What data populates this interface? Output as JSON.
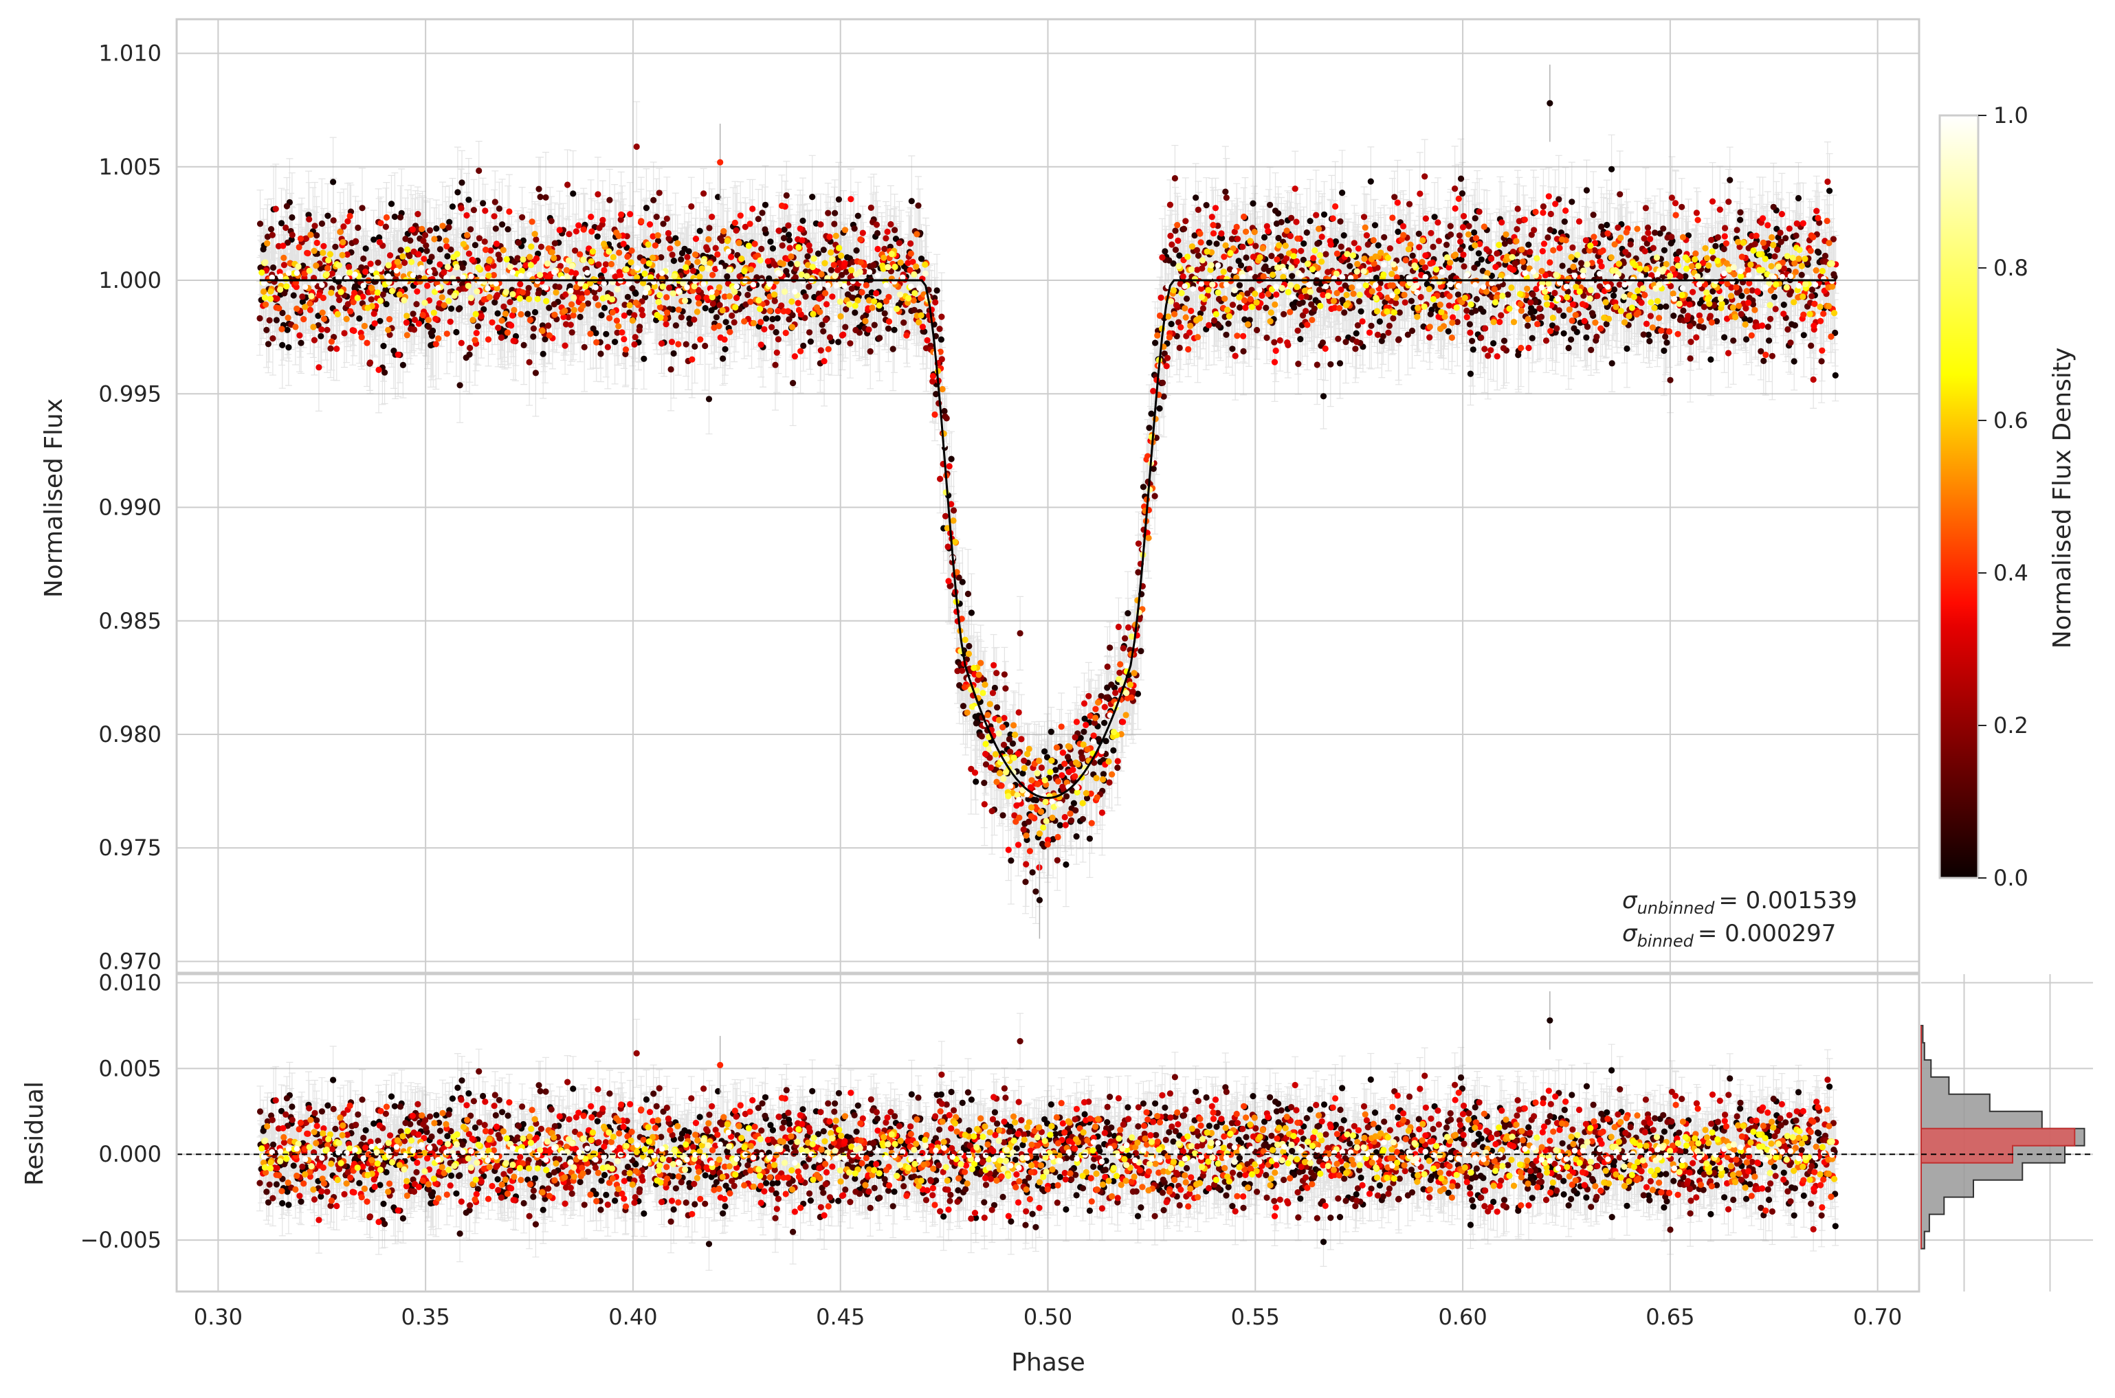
{
  "chart_data": [
    {
      "type": "scatter",
      "panel": "main",
      "xlabel": "Phase",
      "ylabel": "Normalised Flux",
      "xlim": [
        0.29,
        0.71
      ],
      "ylim": [
        0.9695,
        1.0115
      ],
      "xticks": [
        "0.30",
        "0.35",
        "0.40",
        "0.45",
        "0.50",
        "0.55",
        "0.60",
        "0.65",
        "0.70"
      ],
      "yticks": [
        "0.970",
        "0.975",
        "0.980",
        "0.985",
        "0.990",
        "0.995",
        "1.000",
        "1.005",
        "1.010"
      ],
      "grid": true,
      "data_range_x": [
        0.31,
        0.69
      ],
      "transit": {
        "center": 0.5,
        "baseline": 1.0,
        "t1": 0.47,
        "t2": 0.481,
        "t3": 0.519,
        "t4": 0.53,
        "ingress_knee_flux": 0.9825,
        "min_flux": 0.9772
      },
      "model_curve": {
        "x": [
          0.31,
          0.47,
          0.472,
          0.475,
          0.478,
          0.481,
          0.484,
          0.488,
          0.492,
          0.496,
          0.5,
          0.504,
          0.508,
          0.512,
          0.516,
          0.519,
          0.522,
          0.525,
          0.528,
          0.53,
          0.69
        ],
        "y": [
          1.0,
          1.0,
          0.9985,
          0.9945,
          0.989,
          0.9828,
          0.98,
          0.9786,
          0.9778,
          0.9774,
          0.9772,
          0.9774,
          0.9778,
          0.9786,
          0.98,
          0.9828,
          0.989,
          0.9945,
          0.9985,
          1.0,
          1.0
        ]
      },
      "scatter_sigma": 0.001539,
      "binned_sigma": 0.000297,
      "outlier_points": [
        {
          "x": 0.621,
          "y": 1.0078
        },
        {
          "x": 0.421,
          "y": 1.0052
        },
        {
          "x": 0.498,
          "y": 0.9727
        }
      ],
      "annotations": {
        "sigma_unbinned": {
          "symbol": "σ",
          "sub": "unbinned",
          "value": "= 0.001539"
        },
        "sigma_binned": {
          "symbol": "σ",
          "sub": "binned",
          "value": "= 0.000297"
        }
      },
      "point_colormap": "hot",
      "errorbar_color": "#b0b0b0",
      "model_color": "#000000"
    },
    {
      "type": "scatter",
      "panel": "residual",
      "ylabel": "Residual",
      "xlim": [
        0.29,
        0.71
      ],
      "ylim": [
        -0.008,
        0.0105
      ],
      "yticks": [
        "−0.005",
        "0.000",
        "0.005",
        "0.010"
      ],
      "grid": true,
      "zero_line": {
        "y": 0.0,
        "style": "dashed",
        "color": "#000000"
      },
      "scatter_sigma": 0.001539,
      "outlier_points": [
        {
          "x": 0.621,
          "y": 0.0078
        },
        {
          "x": 0.421,
          "y": 0.0052
        }
      ]
    },
    {
      "type": "histogram",
      "panel": "residual-histogram",
      "orientation": "horizontal",
      "bins_edges": [
        -0.0055,
        -0.0045,
        -0.0035,
        -0.0025,
        -0.0015,
        -0.0005,
        0.0005,
        0.0015,
        0.0025,
        0.0035,
        0.0045,
        0.0055,
        0.0065,
        0.0075
      ],
      "unbinned_relative_counts": [
        0.02,
        0.05,
        0.14,
        0.32,
        0.62,
        0.88,
        1.0,
        0.74,
        0.42,
        0.17,
        0.06,
        0.02,
        0.01
      ],
      "binned_relative_counts": [
        0.0,
        0.0,
        0.0,
        0.0,
        0.0,
        0.56,
        0.94,
        0.0,
        0.0,
        0.0,
        0.0,
        0.0,
        0.0
      ],
      "unbinned_color": "#999999",
      "binned_color": "#e05252"
    },
    {
      "type": "colorbar",
      "panel": "colorbar",
      "label": "Normalised Flux Density",
      "range": [
        0.0,
        1.0
      ],
      "ticks": [
        "0.0",
        "0.2",
        "0.4",
        "0.6",
        "0.8",
        "1.0"
      ],
      "colormap": "hot"
    }
  ]
}
